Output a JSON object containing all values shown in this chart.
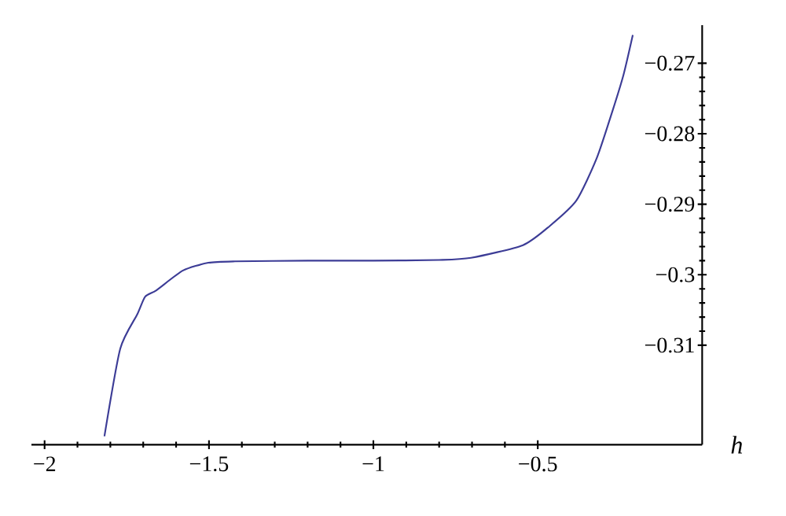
{
  "chart_data": {
    "type": "line",
    "xlabel": "h",
    "xlim": [
      -2.04,
      0
    ],
    "ylim": [
      -0.3241,
      -0.2646
    ],
    "xticks": [
      {
        "value": -2,
        "label": "−2"
      },
      {
        "value": -1.5,
        "label": "−1.5"
      },
      {
        "value": -1,
        "label": "−1"
      },
      {
        "value": -0.5,
        "label": "−0.5"
      }
    ],
    "yticks": [
      {
        "value": -0.31,
        "label": "−0.31"
      },
      {
        "value": -0.3,
        "label": "−0.3"
      },
      {
        "value": -0.29,
        "label": "−0.29"
      },
      {
        "value": -0.28,
        "label": "−0.28"
      },
      {
        "value": -0.27,
        "label": "−0.27"
      }
    ],
    "grid": false,
    "series": [
      {
        "color": "#3c3c96",
        "x": [
          -1.818,
          -1.77,
          -1.718,
          -1.694,
          -1.66,
          -1.579,
          -1.502,
          -1.421,
          -1.2,
          -1.0,
          -0.8,
          -0.703,
          -0.545,
          -0.464,
          -0.383,
          -0.321,
          -0.273,
          -0.239,
          -0.211
        ],
        "values": [
          -0.3229,
          -0.3105,
          -0.3056,
          -0.3031,
          -0.3022,
          -0.2994,
          -0.2983,
          -0.2981,
          -0.298,
          -0.298,
          -0.2979,
          -0.2976,
          -0.2958,
          -0.2931,
          -0.2895,
          -0.2835,
          -0.2768,
          -0.2716,
          -0.266
        ]
      }
    ]
  }
}
